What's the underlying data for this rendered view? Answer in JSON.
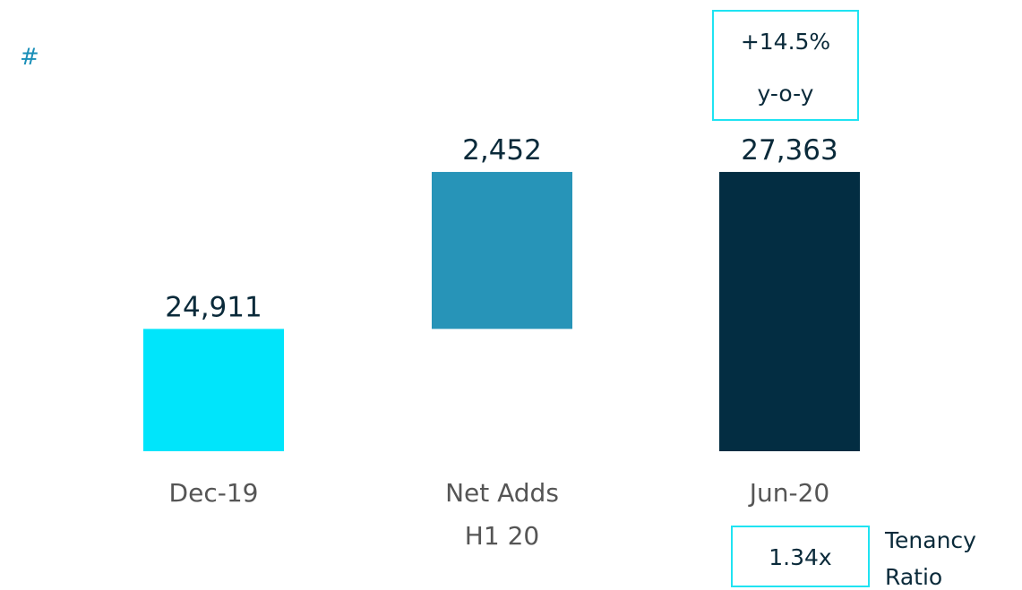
{
  "chart_data": {
    "type": "waterfall",
    "unit_label": "#",
    "categories": [
      "Dec-19",
      "Net Adds\nH1 20",
      "Jun-20"
    ],
    "measures": [
      "absolute",
      "relative",
      "total"
    ],
    "values": [
      24911,
      2452,
      27363
    ],
    "value_labels": [
      "24,911",
      "2,452",
      "27,363"
    ],
    "colors": [
      "#00e5fb",
      "#2794b8",
      "#032d42"
    ],
    "ylim": [
      23000,
      28000
    ],
    "annotations": {
      "growth": "+14.5%",
      "growth_period": "y-o-y",
      "tenancy_value": "1.34x",
      "tenancy_label": "Tenancy\nRatio"
    }
  }
}
